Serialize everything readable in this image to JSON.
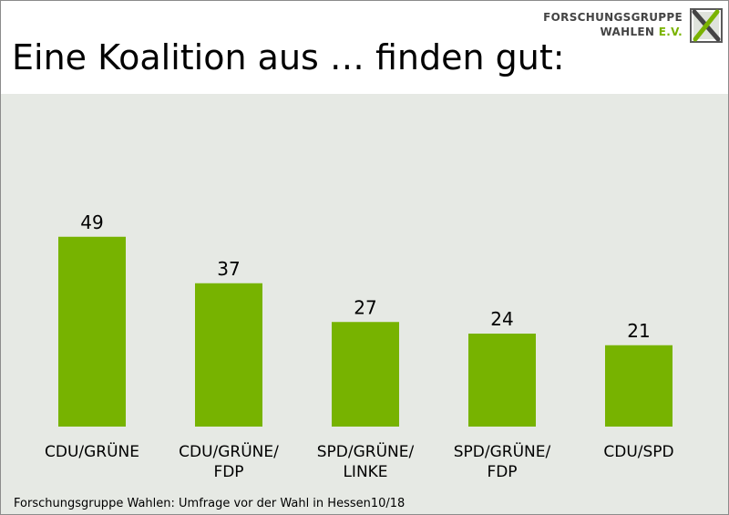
{
  "header": {
    "title": "Eine Koalition aus … finden gut:",
    "logo_line1": "FORSCHUNGSGRUPPE",
    "logo_line2_a": "WAHLEN ",
    "logo_line2_b": "E.V."
  },
  "footer": {
    "source": "Forschungsgruppe Wahlen: Umfrage vor der Wahl in Hessen10/18"
  },
  "colors": {
    "bar": "#77b300",
    "panel": "#e6e9e4",
    "accent": "#7ab300"
  },
  "chart_data": {
    "type": "bar",
    "title": "Eine Koalition aus … finden gut:",
    "xlabel": "",
    "ylabel": "",
    "ylim": [
      0,
      60
    ],
    "grid": false,
    "legend": "none",
    "categories": [
      [
        "CDU/GRÜNE"
      ],
      [
        "CDU/GRÜNE/",
        "FDP"
      ],
      [
        "SPD/GRÜNE/",
        "LINKE"
      ],
      [
        "SPD/GRÜNE/",
        "FDP"
      ],
      [
        "CDU/SPD"
      ]
    ],
    "values": [
      49,
      37,
      27,
      24,
      21
    ]
  }
}
